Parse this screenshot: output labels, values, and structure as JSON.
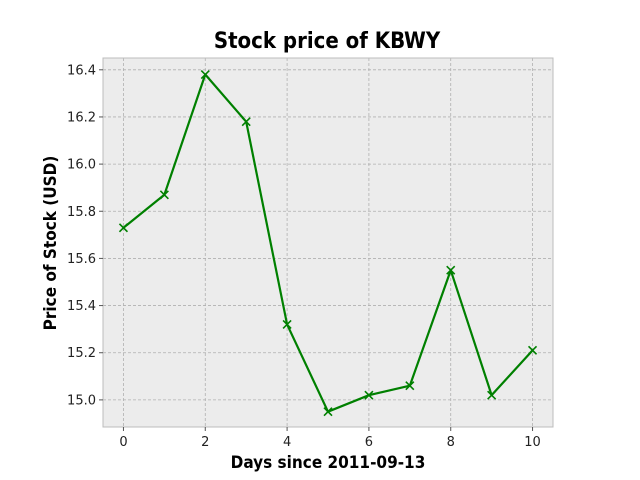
{
  "chart_data": {
    "type": "line",
    "title": "Stock price of KBWY",
    "xlabel": "Days since 2011-09-13",
    "ylabel": "Price of Stock (USD)",
    "x": [
      0,
      1,
      2,
      3,
      4,
      5,
      6,
      7,
      8,
      9,
      10
    ],
    "series": [
      {
        "values": [
          15.73,
          15.87,
          16.38,
          16.18,
          15.32,
          14.95,
          15.02,
          15.06,
          15.55,
          15.02,
          15.21
        ],
        "color": "#008000",
        "marker": "x"
      }
    ],
    "xlim": [
      -0.5,
      10.5
    ],
    "ylim": [
      14.885,
      16.45
    ],
    "xticks": [
      0,
      2,
      4,
      6,
      8,
      10
    ],
    "xtick_labels": [
      "0",
      "2",
      "4",
      "6",
      "8",
      "10"
    ],
    "yticks": [
      15.0,
      15.2,
      15.4,
      15.6,
      15.8,
      16.0,
      16.2,
      16.4
    ],
    "ytick_labels": [
      "15.0",
      "15.2",
      "15.4",
      "15.6",
      "15.8",
      "16.0",
      "16.2",
      "16.4"
    ],
    "grid": true,
    "background": "#ececec"
  }
}
